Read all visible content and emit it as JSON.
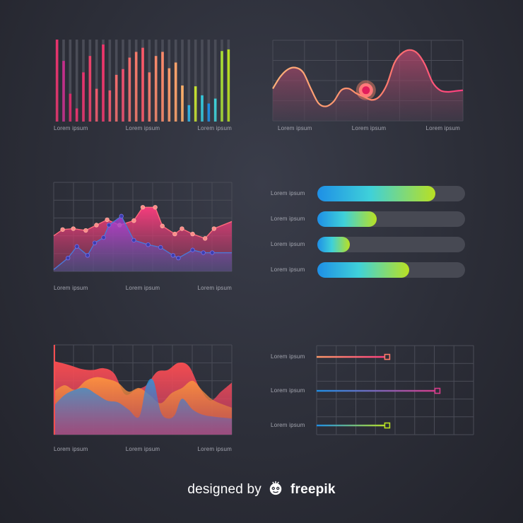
{
  "palette": {
    "background": "#2c2e38",
    "grid": "#4a4c57",
    "pink": "#ff3d7f",
    "red": "#ff4e50",
    "orange": "#ff8a3d",
    "magenta": "#c62d8b",
    "blue": "#1e8fe6",
    "cyan": "#3fd1d9",
    "lime": "#b9e022"
  },
  "footer": {
    "prefix": "designed by",
    "logo_icon": "freepik-logo-icon",
    "brand": "freepik"
  },
  "chart_data": [
    {
      "type": "bar",
      "id": "vertical-bars",
      "xlabels": [
        "Lorem ipsum",
        "Lorem ipsum",
        "Lorem ipsum"
      ],
      "ylim": [
        0,
        100
      ],
      "background_values": [
        100,
        100,
        100,
        100,
        100,
        100,
        100,
        100,
        100,
        100,
        100,
        100,
        100,
        100,
        100,
        100,
        100,
        100,
        100,
        100,
        100,
        100,
        100,
        100,
        100,
        100,
        100
      ],
      "values": [
        100,
        74,
        34,
        16,
        60,
        80,
        40,
        94,
        38,
        57,
        64,
        78,
        85,
        90,
        60,
        80,
        85,
        65,
        72,
        44,
        20,
        43,
        32,
        22,
        28,
        86,
        88
      ],
      "colors": [
        "#e8336d",
        "#c62d8b",
        "#d82c6a",
        "#e8336d",
        "#e8336d",
        "#ec416a",
        "#f0596d",
        "#f2346b",
        "#f0596d",
        "#f26c6c",
        "#ef4f6e",
        "#f26c6c",
        "#f67a6a",
        "#ff5868",
        "#f67a6a",
        "#f8896a",
        "#ff8a6a",
        "#ff9a6a",
        "#ffa36b",
        "#ffb06a",
        "#2fb6e8",
        "#c7e331",
        "#35c9dc",
        "#1e8fe6",
        "#3fd1d9",
        "#a8de34",
        "#b9e022"
      ]
    },
    {
      "type": "area",
      "id": "wave-area",
      "xlabels": [
        "Lorem ipsum",
        "Lorem ipsum",
        "Lorem ipsum"
      ],
      "x": [
        0,
        4,
        8,
        12,
        16,
        20,
        24,
        28,
        32,
        36,
        40,
        44,
        48,
        52,
        56,
        60,
        64,
        68,
        72,
        76,
        80,
        84,
        88,
        92,
        96,
        100
      ],
      "y": [
        40,
        55,
        64,
        66,
        60,
        40,
        22,
        18,
        24,
        38,
        40,
        34,
        30,
        26,
        30,
        45,
        72,
        84,
        88,
        84,
        70,
        48,
        38,
        36,
        37,
        38
      ],
      "ylim": [
        0,
        100
      ],
      "highlight_point": {
        "x": 49,
        "y": 38
      }
    },
    {
      "type": "area",
      "id": "dual-line-area",
      "xlabels": [
        "Lorem ipsum",
        "Lorem ipsum",
        "Lorem ipsum"
      ],
      "ylim": [
        0,
        100
      ],
      "series": [
        {
          "color": "#ff3d7f",
          "x": [
            0,
            5,
            11,
            18,
            24,
            30,
            37,
            45,
            50,
            57,
            61,
            68,
            72,
            78,
            85,
            90,
            100
          ],
          "y": [
            40,
            47,
            48,
            46,
            52,
            58,
            52,
            57,
            72,
            72,
            51,
            42,
            48,
            42,
            37,
            48,
            56
          ]
        },
        {
          "color": "#8a3fcf",
          "x": [
            0,
            8,
            13,
            19,
            23,
            28,
            31,
            38,
            45,
            53,
            60,
            67,
            70,
            78,
            84,
            89,
            100
          ],
          "y": [
            2,
            15,
            28,
            18,
            32,
            38,
            52,
            62,
            35,
            30,
            27,
            18,
            15,
            24,
            21,
            21,
            21
          ]
        }
      ]
    },
    {
      "type": "bar",
      "id": "progress-bars",
      "orientation": "horizontal",
      "categories": [
        "Lorem ipsum",
        "Lorem ipsum",
        "Lorem ipsum",
        "Lorem ipsum"
      ],
      "values": [
        80,
        40,
        22,
        62
      ],
      "xlim": [
        0,
        100
      ]
    },
    {
      "type": "area",
      "id": "overlapping-waves",
      "xlabels": [
        "Lorem ipsum",
        "Lorem ipsum",
        "Lorem ipsum"
      ],
      "ylim": [
        0,
        100
      ],
      "series": [
        {
          "color": "#ff4e50",
          "x": [
            0,
            8,
            16,
            22,
            28,
            34,
            40,
            46,
            52,
            58,
            64,
            70,
            76,
            82,
            88,
            94,
            100
          ],
          "y": [
            82,
            78,
            73,
            72,
            74,
            68,
            45,
            50,
            55,
            70,
            72,
            80,
            76,
            52,
            38,
            48,
            58
          ]
        },
        {
          "color": "#ff8a3d",
          "x": [
            0,
            6,
            12,
            18,
            24,
            30,
            36,
            42,
            48,
            54,
            60,
            66,
            72,
            78,
            84,
            90,
            100
          ],
          "y": [
            48,
            55,
            50,
            60,
            64,
            62,
            58,
            48,
            52,
            44,
            35,
            46,
            52,
            60,
            48,
            38,
            30
          ]
        },
        {
          "color": "#1e8fe6",
          "x": [
            0,
            6,
            12,
            18,
            24,
            30,
            36,
            42,
            48,
            52,
            56,
            60,
            64,
            68,
            72,
            78,
            84,
            90,
            100
          ],
          "y": [
            32,
            44,
            50,
            52,
            45,
            38,
            36,
            28,
            20,
            55,
            60,
            26,
            18,
            22,
            40,
            28,
            22,
            20,
            18
          ]
        }
      ]
    },
    {
      "type": "bar",
      "id": "slider-bars",
      "orientation": "horizontal",
      "categories": [
        "Lorem ipsum",
        "Lorem ipsum",
        "Lorem ipsum"
      ],
      "values": [
        45,
        77,
        45
      ],
      "xlim": [
        0,
        100
      ],
      "colors": [
        "#ff7a6a",
        "#d83b8a",
        "#b9e022"
      ]
    }
  ]
}
